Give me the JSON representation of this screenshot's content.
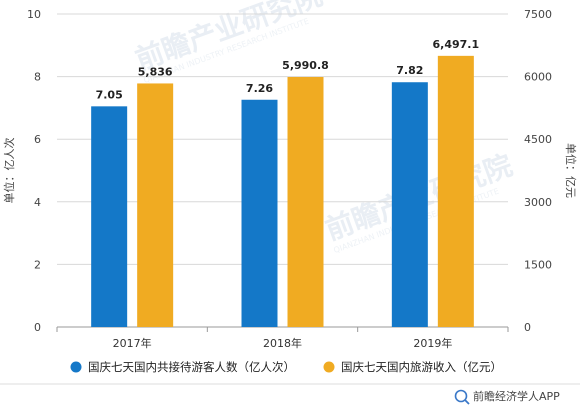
{
  "chart_data": {
    "type": "bar",
    "categories": [
      "2017年",
      "2018年",
      "2019年"
    ],
    "series": [
      {
        "name": "国庆七天国内共接待游客人数（亿人次）",
        "axis": "left",
        "color": "#1478c8",
        "values": [
          7.05,
          7.26,
          7.82
        ],
        "labels": [
          "7.05",
          "7.26",
          "7.82"
        ]
      },
      {
        "name": "国庆七天国内旅游收入（亿元）",
        "axis": "right",
        "color": "#f0ab22",
        "values": [
          5836,
          5990.8,
          6497.1
        ],
        "labels": [
          "5,836",
          "5,990.8",
          "6,497.1"
        ]
      }
    ],
    "ylabel_left": "单位：亿人次",
    "ylabel_right": "单位：亿元",
    "ylim_left": [
      0,
      10
    ],
    "yticks_left": [
      0,
      2,
      4,
      6,
      8,
      10
    ],
    "ylim_right": [
      0,
      7500
    ],
    "yticks_right": [
      0,
      1500,
      3000,
      4500,
      6000,
      7500
    ],
    "grid": true,
    "legend": "bottom"
  },
  "watermark": {
    "text": "前瞻产业研究院",
    "sub": "QIANZHAN INDUSTRY RESEARCH INSTITUTE"
  },
  "footer": {
    "text": "前瞻经济学人APP"
  }
}
